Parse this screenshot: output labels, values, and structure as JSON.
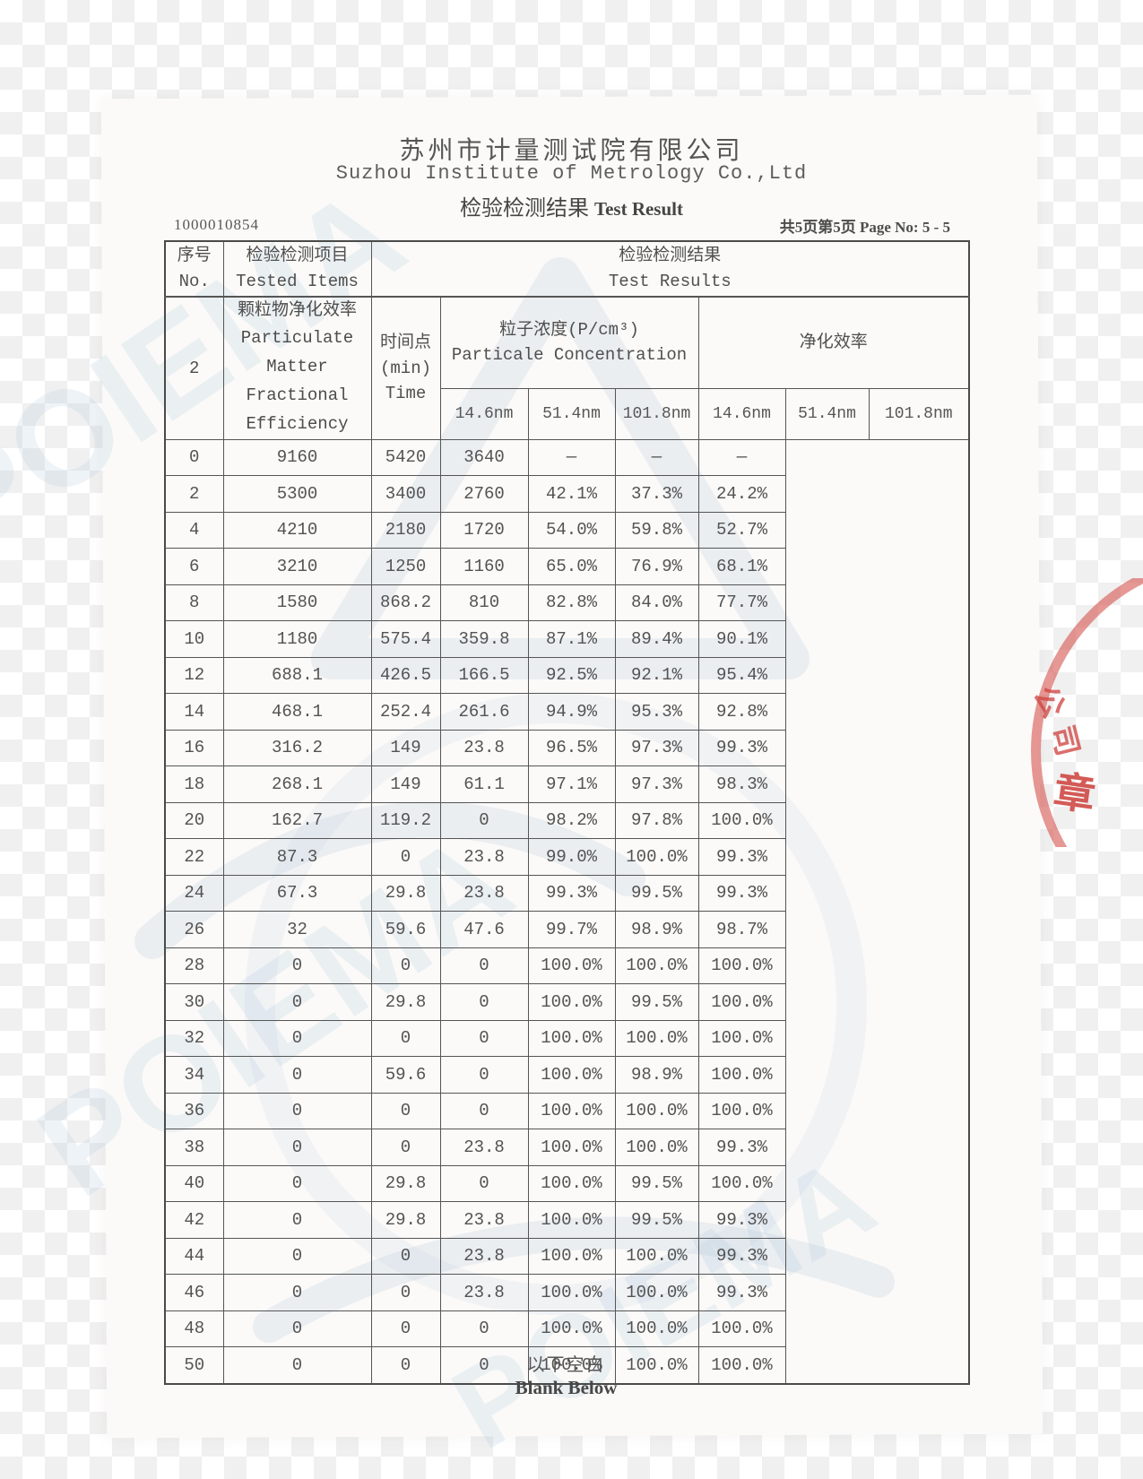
{
  "header": {
    "company_cn": "苏州市计量测试院有限公司",
    "company_en": "Suzhou Institute of Metrology Co.,Ltd",
    "title_cn": "检验检测结果",
    "title_en": "Test Result",
    "report_no": "1000010854",
    "page_info": "共5页第5页 Page No: 5 - 5"
  },
  "table": {
    "col_no": "序号\nNo.",
    "col_items": "检验检测项目\nTested Items",
    "col_results": "检验检测结果\nTest Results",
    "row_no": "2",
    "item_cn": "颗粒物净化效率",
    "item_en": "Particulate\nMatter\nFractional\nEfficiency",
    "time_header": "时间点\n(min)\nTime",
    "conc_header": "粒子浓度(P/cm³)\nParticale Concentration",
    "eff_header": "净化效率",
    "size_headers": [
      "14.6nm",
      "51.4nm",
      "101.8nm",
      "14.6nm",
      "51.4nm",
      "101.8nm"
    ],
    "rows": [
      [
        "0",
        "9160",
        "5420",
        "3640",
        "—",
        "—",
        "—"
      ],
      [
        "2",
        "5300",
        "3400",
        "2760",
        "42.1%",
        "37.3%",
        "24.2%"
      ],
      [
        "4",
        "4210",
        "2180",
        "1720",
        "54.0%",
        "59.8%",
        "52.7%"
      ],
      [
        "6",
        "3210",
        "1250",
        "1160",
        "65.0%",
        "76.9%",
        "68.1%"
      ],
      [
        "8",
        "1580",
        "868.2",
        "810",
        "82.8%",
        "84.0%",
        "77.7%"
      ],
      [
        "10",
        "1180",
        "575.4",
        "359.8",
        "87.1%",
        "89.4%",
        "90.1%"
      ],
      [
        "12",
        "688.1",
        "426.5",
        "166.5",
        "92.5%",
        "92.1%",
        "95.4%"
      ],
      [
        "14",
        "468.1",
        "252.4",
        "261.6",
        "94.9%",
        "95.3%",
        "92.8%"
      ],
      [
        "16",
        "316.2",
        "149",
        "23.8",
        "96.5%",
        "97.3%",
        "99.3%"
      ],
      [
        "18",
        "268.1",
        "149",
        "61.1",
        "97.1%",
        "97.3%",
        "98.3%"
      ],
      [
        "20",
        "162.7",
        "119.2",
        "0",
        "98.2%",
        "97.8%",
        "100.0%"
      ],
      [
        "22",
        "87.3",
        "0",
        "23.8",
        "99.0%",
        "100.0%",
        "99.3%"
      ],
      [
        "24",
        "67.3",
        "29.8",
        "23.8",
        "99.3%",
        "99.5%",
        "99.3%"
      ],
      [
        "26",
        "32",
        "59.6",
        "47.6",
        "99.7%",
        "98.9%",
        "98.7%"
      ],
      [
        "28",
        "0",
        "0",
        "0",
        "100.0%",
        "100.0%",
        "100.0%"
      ],
      [
        "30",
        "0",
        "29.8",
        "0",
        "100.0%",
        "99.5%",
        "100.0%"
      ],
      [
        "32",
        "0",
        "0",
        "0",
        "100.0%",
        "100.0%",
        "100.0%"
      ],
      [
        "34",
        "0",
        "59.6",
        "0",
        "100.0%",
        "98.9%",
        "100.0%"
      ],
      [
        "36",
        "0",
        "0",
        "0",
        "100.0%",
        "100.0%",
        "100.0%"
      ],
      [
        "38",
        "0",
        "0",
        "23.8",
        "100.0%",
        "100.0%",
        "99.3%"
      ],
      [
        "40",
        "0",
        "29.8",
        "0",
        "100.0%",
        "99.5%",
        "100.0%"
      ],
      [
        "42",
        "0",
        "29.8",
        "23.8",
        "100.0%",
        "99.5%",
        "99.3%"
      ],
      [
        "44",
        "0",
        "0",
        "23.8",
        "100.0%",
        "100.0%",
        "99.3%"
      ],
      [
        "46",
        "0",
        "0",
        "23.8",
        "100.0%",
        "100.0%",
        "99.3%"
      ],
      [
        "48",
        "0",
        "0",
        "0",
        "100.0%",
        "100.0%",
        "100.0%"
      ],
      [
        "50",
        "0",
        "0",
        "0",
        "100.0%",
        "100.0%",
        "100.0%"
      ]
    ]
  },
  "footer": {
    "blank_cn": "以下空白",
    "blank_en": "Blank Below"
  },
  "stamp": {
    "arc_chars": [
      "公",
      "司"
    ],
    "seal_char": "章",
    "color": "#d65854"
  },
  "watermark": {
    "text": "POIEMA",
    "color": "#aec4da"
  }
}
